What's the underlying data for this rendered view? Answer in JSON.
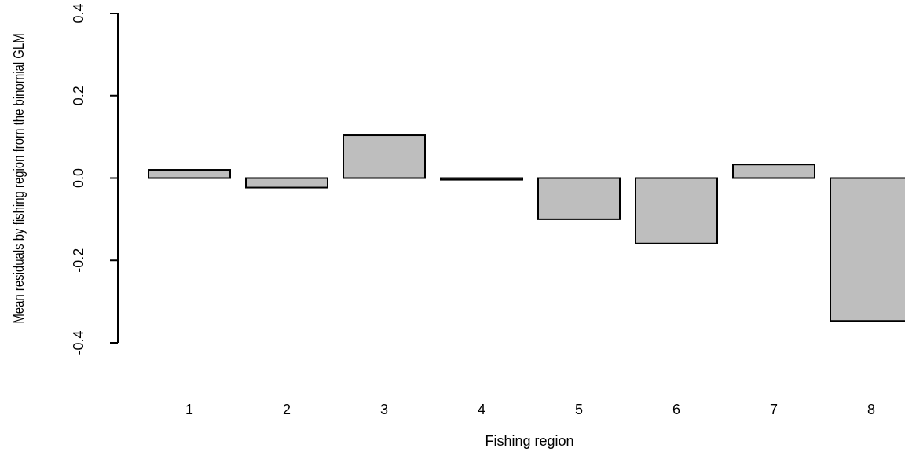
{
  "chart_data": {
    "type": "bar",
    "title": "",
    "xlabel": "Fishing region",
    "ylabel": "Mean residuals by fishing region from the binomial GLM",
    "categories": [
      "1",
      "2",
      "3",
      "4",
      "5",
      "6",
      "7",
      "8"
    ],
    "values": [
      0.02,
      -0.023,
      0.104,
      -0.004,
      -0.1,
      -0.159,
      0.033,
      -0.347
    ],
    "ylim": [
      -0.4,
      0.4
    ],
    "yticks": [
      -0.4,
      -0.2,
      0.0,
      0.2,
      0.4
    ],
    "ytick_labels": [
      "-0.4",
      "-0.2",
      "0.0",
      "0.2",
      "0.4"
    ],
    "grid": false,
    "legend": "none",
    "bar_fill": "#bebebe",
    "bar_stroke": "#000000"
  }
}
